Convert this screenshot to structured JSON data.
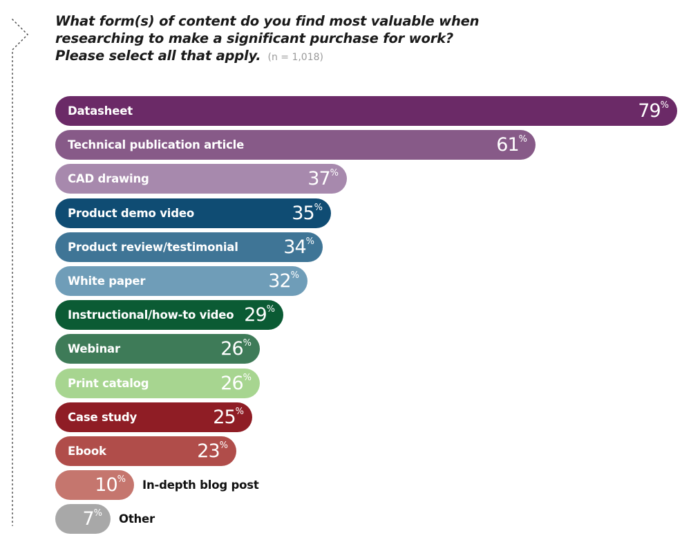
{
  "chart_data": {
    "type": "bar",
    "orientation": "horizontal",
    "title_lines": [
      "What form(s) of content do you find most valuable when",
      "researching to make a significant purchase for work?",
      "Please select all that apply."
    ],
    "sample_size": "(n = 1,018)",
    "unit": "%",
    "xlim": [
      0,
      79
    ],
    "categories": [
      "Datasheet",
      "Technical publication article",
      "CAD drawing",
      "Product demo video",
      "Product review/testimonial",
      "White paper",
      "Instructional/how-to video",
      "Webinar",
      "Print catalog",
      "Case study",
      "Ebook",
      "In-depth blog post",
      "Other"
    ],
    "values": [
      79,
      61,
      37,
      35,
      34,
      32,
      29,
      26,
      26,
      25,
      23,
      10,
      7
    ],
    "colors": [
      "#6b2a67",
      "#875a88",
      "#a789ad",
      "#0f4c73",
      "#3f7596",
      "#6f9db8",
      "#0b5b34",
      "#3e7b58",
      "#a7d590",
      "#8f1d25",
      "#b04d4a",
      "#c5766e",
      "#a8a8a8"
    ]
  }
}
